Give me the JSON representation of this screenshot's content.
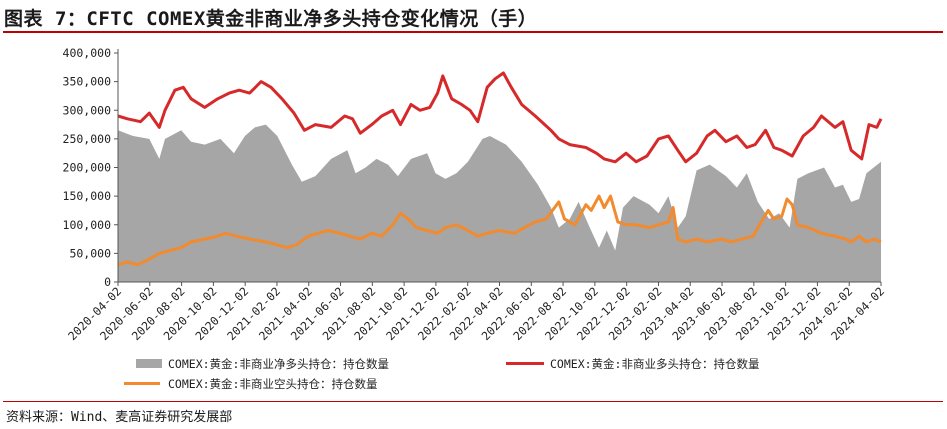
{
  "title": "图表 7：CFTC COMEX黄金非商业净多头持仓变化情况（手）",
  "source": "资料来源：Wind、麦高证券研究发展部",
  "colors": {
    "net": "#a6a6a6",
    "long": "#d62a2a",
    "short": "#f28a2e",
    "accent": "#c00000"
  },
  "chart_data": {
    "type": "area",
    "ylim": [
      0,
      400000
    ],
    "yticks": [
      0,
      50000,
      100000,
      150000,
      200000,
      250000,
      300000,
      350000,
      400000
    ],
    "ytick_labels": [
      "0",
      "50,000",
      "100,000",
      "150,000",
      "200,000",
      "250,000",
      "300,000",
      "350,000",
      "400,000"
    ],
    "xlim": [
      "2020-04-02",
      "2024-04-02"
    ],
    "xtick_labels": [
      "2020-04-02",
      "2020-06-02",
      "2020-08-02",
      "2020-10-02",
      "2020-12-02",
      "2021-02-02",
      "2021-04-02",
      "2021-06-02",
      "2021-08-02",
      "2021-10-02",
      "2021-12-02",
      "2022-02-02",
      "2022-04-02",
      "2022-06-02",
      "2022-08-02",
      "2022-10-02",
      "2022-12-02",
      "2023-02-02",
      "2023-04-02",
      "2023-06-02",
      "2023-08-02",
      "2023-10-02",
      "2023-12-02",
      "2024-02-02",
      "2024-04-02"
    ],
    "legend": "bottom",
    "series": [
      {
        "name": "COMEX:黄金:非商业净多头持仓：持仓数量",
        "type": "area",
        "color": "#a6a6a6",
        "points": [
          [
            "2020-04-02",
            265000
          ],
          [
            "2020-05-01",
            255000
          ],
          [
            "2020-06-01",
            250000
          ],
          [
            "2020-06-20",
            215000
          ],
          [
            "2020-07-01",
            250000
          ],
          [
            "2020-08-01",
            265000
          ],
          [
            "2020-08-20",
            245000
          ],
          [
            "2020-09-15",
            240000
          ],
          [
            "2020-10-15",
            250000
          ],
          [
            "2020-11-10",
            225000
          ],
          [
            "2020-12-01",
            255000
          ],
          [
            "2020-12-20",
            270000
          ],
          [
            "2021-01-10",
            275000
          ],
          [
            "2021-02-01",
            255000
          ],
          [
            "2021-03-01",
            205000
          ],
          [
            "2021-03-20",
            175000
          ],
          [
            "2021-04-15",
            185000
          ],
          [
            "2021-05-15",
            215000
          ],
          [
            "2021-06-15",
            230000
          ],
          [
            "2021-07-01",
            190000
          ],
          [
            "2021-07-20",
            200000
          ],
          [
            "2021-08-10",
            215000
          ],
          [
            "2021-09-01",
            205000
          ],
          [
            "2021-09-20",
            185000
          ],
          [
            "2021-10-15",
            215000
          ],
          [
            "2021-11-15",
            225000
          ],
          [
            "2021-12-01",
            190000
          ],
          [
            "2021-12-20",
            180000
          ],
          [
            "2022-01-10",
            190000
          ],
          [
            "2022-02-01",
            210000
          ],
          [
            "2022-03-01",
            250000
          ],
          [
            "2022-03-15",
            255000
          ],
          [
            "2022-04-15",
            240000
          ],
          [
            "2022-05-15",
            210000
          ],
          [
            "2022-06-15",
            170000
          ],
          [
            "2022-07-10",
            130000
          ],
          [
            "2022-07-25",
            95000
          ],
          [
            "2022-08-15",
            110000
          ],
          [
            "2022-09-01",
            140000
          ],
          [
            "2022-09-20",
            100000
          ],
          [
            "2022-10-10",
            60000
          ],
          [
            "2022-10-25",
            90000
          ],
          [
            "2022-11-10",
            55000
          ],
          [
            "2022-11-25",
            130000
          ],
          [
            "2022-12-15",
            150000
          ],
          [
            "2023-01-15",
            135000
          ],
          [
            "2023-02-01",
            120000
          ],
          [
            "2023-02-20",
            150000
          ],
          [
            "2023-03-10",
            95000
          ],
          [
            "2023-03-25",
            115000
          ],
          [
            "2023-04-15",
            195000
          ],
          [
            "2023-05-10",
            205000
          ],
          [
            "2023-06-10",
            185000
          ],
          [
            "2023-07-01",
            165000
          ],
          [
            "2023-07-20",
            190000
          ],
          [
            "2023-08-10",
            140000
          ],
          [
            "2023-09-01",
            110000
          ],
          [
            "2023-09-20",
            120000
          ],
          [
            "2023-10-10",
            95000
          ],
          [
            "2023-10-25",
            180000
          ],
          [
            "2023-11-15",
            190000
          ],
          [
            "2023-12-15",
            200000
          ],
          [
            "2024-01-05",
            165000
          ],
          [
            "2024-01-20",
            170000
          ],
          [
            "2024-02-05",
            140000
          ],
          [
            "2024-02-20",
            145000
          ],
          [
            "2024-03-05",
            190000
          ],
          [
            "2024-04-02",
            210000
          ]
        ]
      },
      {
        "name": "COMEX:黄金:非商业多头持仓：持仓数量",
        "type": "line",
        "color": "#d62a2a",
        "points": [
          [
            "2020-04-02",
            290000
          ],
          [
            "2020-04-20",
            285000
          ],
          [
            "2020-05-15",
            280000
          ],
          [
            "2020-06-01",
            295000
          ],
          [
            "2020-06-20",
            270000
          ],
          [
            "2020-07-01",
            300000
          ],
          [
            "2020-07-20",
            335000
          ],
          [
            "2020-08-05",
            340000
          ],
          [
            "2020-08-20",
            320000
          ],
          [
            "2020-09-15",
            305000
          ],
          [
            "2020-10-10",
            320000
          ],
          [
            "2020-11-01",
            330000
          ],
          [
            "2020-11-20",
            335000
          ],
          [
            "2020-12-10",
            330000
          ],
          [
            "2021-01-01",
            350000
          ],
          [
            "2021-01-20",
            340000
          ],
          [
            "2021-02-10",
            320000
          ],
          [
            "2021-03-05",
            295000
          ],
          [
            "2021-03-25",
            265000
          ],
          [
            "2021-04-15",
            275000
          ],
          [
            "2021-05-15",
            270000
          ],
          [
            "2021-06-10",
            290000
          ],
          [
            "2021-06-25",
            285000
          ],
          [
            "2021-07-10",
            260000
          ],
          [
            "2021-08-01",
            275000
          ],
          [
            "2021-08-20",
            290000
          ],
          [
            "2021-09-10",
            300000
          ],
          [
            "2021-09-25",
            275000
          ],
          [
            "2021-10-15",
            310000
          ],
          [
            "2021-11-01",
            300000
          ],
          [
            "2021-11-20",
            305000
          ],
          [
            "2021-12-05",
            330000
          ],
          [
            "2021-12-15",
            360000
          ],
          [
            "2022-01-01",
            320000
          ],
          [
            "2022-01-20",
            310000
          ],
          [
            "2022-02-05",
            300000
          ],
          [
            "2022-02-20",
            280000
          ],
          [
            "2022-03-10",
            340000
          ],
          [
            "2022-03-25",
            355000
          ],
          [
            "2022-04-10",
            365000
          ],
          [
            "2022-04-25",
            340000
          ],
          [
            "2022-05-15",
            310000
          ],
          [
            "2022-06-10",
            290000
          ],
          [
            "2022-07-10",
            265000
          ],
          [
            "2022-07-25",
            250000
          ],
          [
            "2022-08-15",
            240000
          ],
          [
            "2022-09-15",
            235000
          ],
          [
            "2022-10-05",
            225000
          ],
          [
            "2022-10-20",
            215000
          ],
          [
            "2022-11-10",
            210000
          ],
          [
            "2022-12-01",
            225000
          ],
          [
            "2022-12-20",
            210000
          ],
          [
            "2023-01-10",
            220000
          ],
          [
            "2023-02-01",
            250000
          ],
          [
            "2023-02-20",
            255000
          ],
          [
            "2023-03-10",
            230000
          ],
          [
            "2023-03-25",
            210000
          ],
          [
            "2023-04-15",
            225000
          ],
          [
            "2023-05-05",
            255000
          ],
          [
            "2023-05-20",
            265000
          ],
          [
            "2023-06-10",
            245000
          ],
          [
            "2023-07-01",
            255000
          ],
          [
            "2023-07-20",
            235000
          ],
          [
            "2023-08-05",
            240000
          ],
          [
            "2023-08-25",
            265000
          ],
          [
            "2023-09-10",
            235000
          ],
          [
            "2023-09-25",
            230000
          ],
          [
            "2023-10-15",
            220000
          ],
          [
            "2023-11-05",
            255000
          ],
          [
            "2023-11-25",
            270000
          ],
          [
            "2023-12-10",
            290000
          ],
          [
            "2024-01-05",
            270000
          ],
          [
            "2024-01-20",
            280000
          ],
          [
            "2024-02-05",
            230000
          ],
          [
            "2024-02-25",
            215000
          ],
          [
            "2024-03-10",
            275000
          ],
          [
            "2024-03-25",
            270000
          ],
          [
            "2024-04-02",
            285000
          ]
        ]
      },
      {
        "name": "COMEX:黄金:非商业空头持仓：持仓数量",
        "type": "line",
        "color": "#f28a2e",
        "points": [
          [
            "2020-04-02",
            30000
          ],
          [
            "2020-04-20",
            35000
          ],
          [
            "2020-05-10",
            30000
          ],
          [
            "2020-06-01",
            40000
          ],
          [
            "2020-06-20",
            50000
          ],
          [
            "2020-07-10",
            55000
          ],
          [
            "2020-08-01",
            60000
          ],
          [
            "2020-08-20",
            70000
          ],
          [
            "2020-09-15",
            75000
          ],
          [
            "2020-10-10",
            80000
          ],
          [
            "2020-10-25",
            85000
          ],
          [
            "2020-11-15",
            80000
          ],
          [
            "2020-12-10",
            75000
          ],
          [
            "2021-01-10",
            70000
          ],
          [
            "2021-02-01",
            65000
          ],
          [
            "2021-02-20",
            60000
          ],
          [
            "2021-03-10",
            65000
          ],
          [
            "2021-04-01",
            80000
          ],
          [
            "2021-04-20",
            85000
          ],
          [
            "2021-05-10",
            90000
          ],
          [
            "2021-06-01",
            85000
          ],
          [
            "2021-06-20",
            80000
          ],
          [
            "2021-07-10",
            75000
          ],
          [
            "2021-08-01",
            85000
          ],
          [
            "2021-08-20",
            80000
          ],
          [
            "2021-09-10",
            100000
          ],
          [
            "2021-09-25",
            120000
          ],
          [
            "2021-10-10",
            110000
          ],
          [
            "2021-10-25",
            95000
          ],
          [
            "2021-11-15",
            90000
          ],
          [
            "2021-12-05",
            85000
          ],
          [
            "2021-12-20",
            95000
          ],
          [
            "2022-01-10",
            100000
          ],
          [
            "2022-02-01",
            90000
          ],
          [
            "2022-02-20",
            80000
          ],
          [
            "2022-03-10",
            85000
          ],
          [
            "2022-04-01",
            90000
          ],
          [
            "2022-05-01",
            85000
          ],
          [
            "2022-05-20",
            95000
          ],
          [
            "2022-06-10",
            105000
          ],
          [
            "2022-07-01",
            110000
          ],
          [
            "2022-07-25",
            140000
          ],
          [
            "2022-08-05",
            110000
          ],
          [
            "2022-08-25",
            100000
          ],
          [
            "2022-09-15",
            135000
          ],
          [
            "2022-09-25",
            125000
          ],
          [
            "2022-10-10",
            150000
          ],
          [
            "2022-10-20",
            130000
          ],
          [
            "2022-11-01",
            150000
          ],
          [
            "2022-11-15",
            105000
          ],
          [
            "2022-12-01",
            100000
          ],
          [
            "2022-12-20",
            100000
          ],
          [
            "2023-01-15",
            95000
          ],
          [
            "2023-02-01",
            100000
          ],
          [
            "2023-02-20",
            105000
          ],
          [
            "2023-03-01",
            130000
          ],
          [
            "2023-03-10",
            75000
          ],
          [
            "2023-03-25",
            70000
          ],
          [
            "2023-04-15",
            75000
          ],
          [
            "2023-05-05",
            70000
          ],
          [
            "2023-06-01",
            75000
          ],
          [
            "2023-06-20",
            70000
          ],
          [
            "2023-07-10",
            75000
          ],
          [
            "2023-08-01",
            80000
          ],
          [
            "2023-08-20",
            110000
          ],
          [
            "2023-08-30",
            125000
          ],
          [
            "2023-09-10",
            110000
          ],
          [
            "2023-09-25",
            115000
          ],
          [
            "2023-10-05",
            145000
          ],
          [
            "2023-10-15",
            135000
          ],
          [
            "2023-10-25",
            100000
          ],
          [
            "2023-11-15",
            95000
          ],
          [
            "2023-12-10",
            85000
          ],
          [
            "2024-01-05",
            80000
          ],
          [
            "2024-01-25",
            75000
          ],
          [
            "2024-02-05",
            70000
          ],
          [
            "2024-02-20",
            80000
          ],
          [
            "2024-03-05",
            70000
          ],
          [
            "2024-03-20",
            75000
          ],
          [
            "2024-04-02",
            70000
          ]
        ]
      }
    ]
  }
}
